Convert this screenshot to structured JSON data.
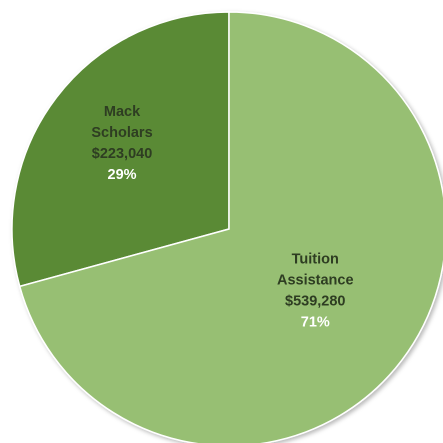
{
  "chart_data": {
    "type": "pie",
    "slices": [
      {
        "name": "Mack Scholars",
        "label_lines": [
          "Mack",
          "Scholars"
        ],
        "value": 223040,
        "value_label": "$223,040",
        "percent": 29,
        "percent_label": "29%",
        "color": "#5a8a36",
        "text_color": "#2e3d22"
      },
      {
        "name": "Tuition Assistance",
        "label_lines": [
          "Tuition",
          "Assistance"
        ],
        "value": 539280,
        "value_label": "$539,280",
        "percent": 71,
        "percent_label": "71%",
        "color": "#97bf73",
        "text_color": "#2e3d22"
      }
    ],
    "start": "12 o'clock",
    "direction": "counterclockwise for first slice"
  }
}
